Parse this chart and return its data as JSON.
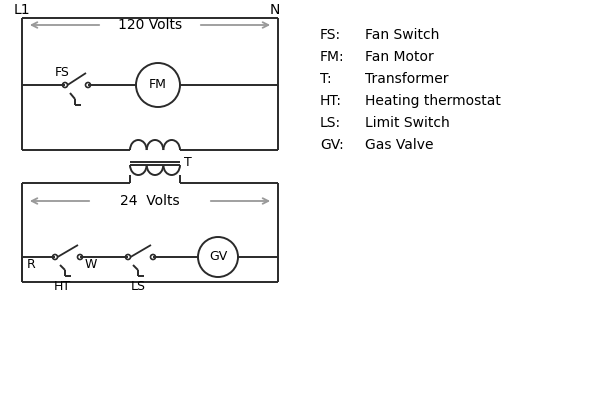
{
  "bg_color": "#ffffff",
  "line_color": "#2a2a2a",
  "arrow_color": "#999999",
  "legend": [
    [
      "FS:",
      "Fan Switch"
    ],
    [
      "FM:",
      "Fan Motor"
    ],
    [
      "T:",
      "Transformer"
    ],
    [
      "HT:",
      "Heating thermostat"
    ],
    [
      "LS:",
      "Limit Switch"
    ],
    [
      "GV:",
      "Gas Valve"
    ]
  ],
  "label_L1": "L1",
  "label_N": "N",
  "label_120V": "120 Volts",
  "label_24V": "24  Volts",
  "label_T": "T"
}
